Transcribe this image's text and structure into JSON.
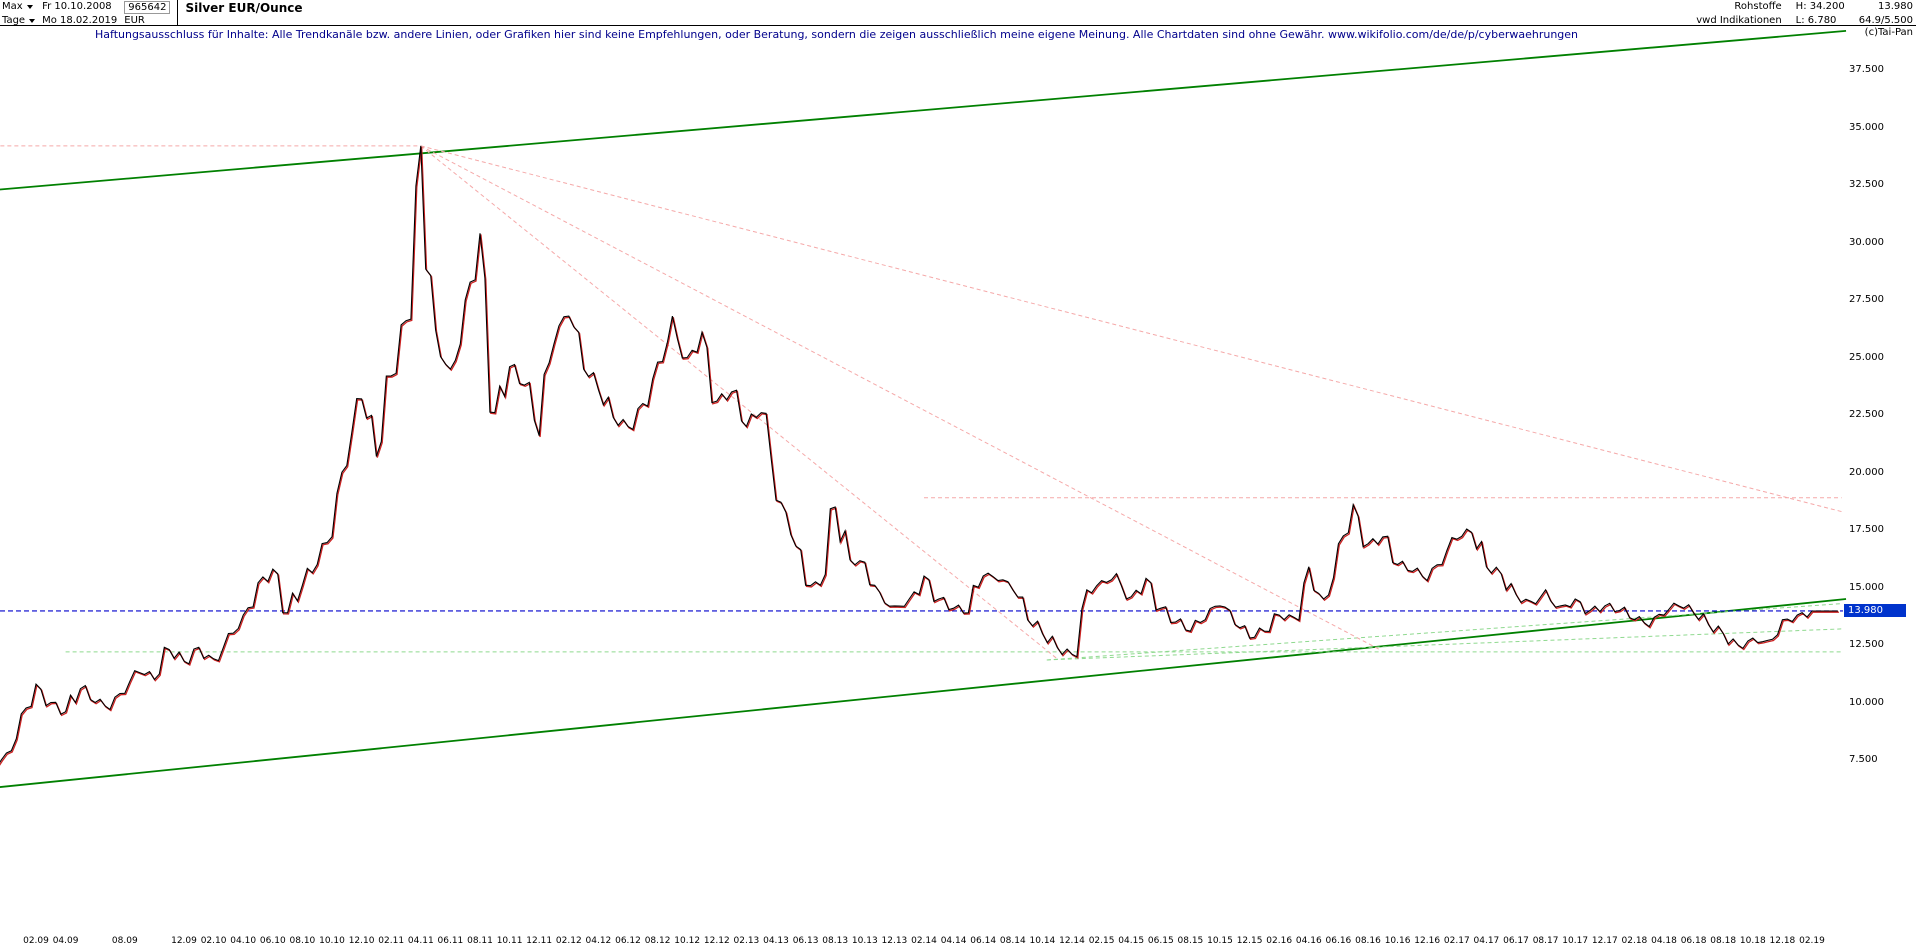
{
  "header": {
    "range_selector": "Max",
    "period_selector": "Tage",
    "date_from": "Fr 10.10.2008",
    "date_to": "Mo 18.02.2019",
    "security_id": "965642",
    "currency": "EUR",
    "title": "Silver EUR/Ounce",
    "category": "Rohstoffe",
    "source": "vwd Indikationen",
    "high_label": "H: 34.200",
    "low_label": "L: 6.780",
    "last_price": "13.980",
    "stat": "64.9/5.500",
    "copyright": "(c)Tai-Pan"
  },
  "disclaimer": "Haftungsausschluss für Inhalte: Alle Trendkanäle bzw. andere Linien, oder Grafiken hier sind keine Empfehlungen, oder Beratung, sondern die zeigen ausschließlich meine eigene Meinung. Alle Chartdaten sind ohne Gewähr.  www.wikifolio.com/de/de/p/cyberwaehrungen",
  "chart_data": {
    "type": "line",
    "title": "Silver EUR/Ounce",
    "xlabel": "",
    "ylabel": "EUR",
    "ylim": [
      6,
      40
    ],
    "grid": false,
    "legend": false,
    "current_price": 13.98,
    "price_label": "13.980",
    "high": 34.2,
    "low": 6.78,
    "y_ticks": [
      "37.500",
      "35.000",
      "32.500",
      "30.000",
      "27.500",
      "25.000",
      "22.500",
      "20.000",
      "17.500",
      "15.000",
      "12.500",
      "10.000",
      "7.500"
    ],
    "x_tick_labels": [
      "02.09",
      "04.09",
      "08.09",
      "12.09",
      "02.10",
      "04.10",
      "06.10",
      "08.10",
      "10.10",
      "12.10",
      "02.11",
      "04.11",
      "06.11",
      "08.11",
      "10.11",
      "12.11",
      "02.12",
      "04.12",
      "06.12",
      "08.12",
      "10.12",
      "12.12",
      "02.13",
      "04.13",
      "06.13",
      "08.13",
      "10.13",
      "12.13",
      "02.14",
      "04.14",
      "06.14",
      "08.14",
      "10.14",
      "12.14",
      "02.15",
      "04.15",
      "06.15",
      "08.15",
      "10.15",
      "12.15",
      "02.16",
      "04.16",
      "06.16",
      "08.16",
      "10.16",
      "12.16",
      "02.17",
      "04.17",
      "06.17",
      "08.17",
      "10.17",
      "12.17",
      "02.18",
      "04.18",
      "06.18",
      "08.18",
      "10.18",
      "12.18",
      "02.19"
    ],
    "series": [
      {
        "name": "Silver EUR/Ounce (approx monthly, 10.2008 - 02.2019)",
        "start_month": "10.2008",
        "granularity": "monthly-approx",
        "values": [
          8.3,
          7.3,
          7.8,
          9.5,
          10.8,
          10.0,
          9.6,
          10.6,
          10.0,
          9.7,
          10.4,
          11.3,
          11.0,
          12.3,
          11.8,
          12.4,
          11.9,
          13.0,
          13.8,
          15.2,
          15.8,
          13.9,
          15.1,
          16.0,
          17.2,
          20.3,
          23.2,
          20.7,
          24.2,
          26.6,
          34.2,
          26.2,
          24.5,
          27.5,
          30.4,
          22.6,
          24.6,
          23.8,
          21.6,
          25.6,
          26.8,
          24.5,
          23.6,
          22.4,
          22.0,
          23.0,
          24.8,
          26.8,
          25.0,
          26.1,
          23.1,
          23.5,
          22.0,
          22.6,
          18.8,
          17.3,
          15.1,
          15.1,
          18.5,
          16.2,
          16.1,
          14.8,
          14.2,
          14.5,
          15.5,
          14.5,
          14.1,
          13.9,
          15.5,
          15.3,
          14.9,
          13.6,
          13.0,
          12.4,
          12.1,
          14.9,
          15.3,
          15.6,
          14.6,
          15.4,
          14.1,
          13.5,
          13.1,
          13.6,
          14.2,
          13.4,
          12.8,
          13.1,
          13.8,
          13.7,
          15.9,
          14.5,
          16.9,
          18.6,
          16.9,
          17.2,
          16.0,
          15.7,
          15.3,
          16.0,
          17.1,
          17.4,
          15.9,
          15.6,
          14.7,
          14.4,
          14.9,
          14.2,
          14.5,
          14.0,
          14.2,
          14.0,
          13.6,
          13.3,
          13.8,
          14.2,
          13.9,
          13.4,
          13.0,
          12.5,
          12.8,
          12.7,
          13.6,
          13.8,
          13.98
        ]
      }
    ],
    "trend_lines": [
      {
        "name": "upper-channel-line",
        "color": "#008000",
        "width": 1.8,
        "dash": "",
        "m1": -4.3,
        "v1": 32.2,
        "m2": 122.3,
        "v2": 39.2
      },
      {
        "name": "lower-channel-line",
        "color": "#008000",
        "width": 1.8,
        "dash": "",
        "m1": -4.3,
        "v1": 6.2,
        "m2": 122.3,
        "v2": 14.5
      },
      {
        "name": "support-horizontal",
        "color": "#8fd98f",
        "width": 1,
        "dash": "4 3",
        "m1": 2,
        "v1": 12.2,
        "m2": 122,
        "v2": 12.2
      },
      {
        "name": "support-fan-upper",
        "color": "#8fd98f",
        "width": 1,
        "dash": "4 3",
        "m1": 68.3,
        "v1": 11.85,
        "m2": 122,
        "v2": 14.3
      },
      {
        "name": "support-fan-lower",
        "color": "#8fd98f",
        "width": 1,
        "dash": "4 3",
        "m1": 68.3,
        "v1": 11.85,
        "m2": 122,
        "v2": 13.2
      },
      {
        "name": "peak-resistance-horizontal",
        "color": "#f5a9a9",
        "width": 1,
        "dash": "4 3",
        "m1": -4.3,
        "v1": 34.2,
        "m2": 26,
        "v2": 34.2
      },
      {
        "name": "downtrend-fan-1",
        "color": "#f5a9a9",
        "width": 1,
        "dash": "4 3",
        "m1": 26,
        "v1": 34.2,
        "m2": 122,
        "v2": 18.3
      },
      {
        "name": "downtrend-fan-2",
        "color": "#f5a9a9",
        "width": 1,
        "dash": "4 3",
        "m1": 26,
        "v1": 34.2,
        "m2": 90.8,
        "v2": 12.3
      },
      {
        "name": "downtrend-fan-3",
        "color": "#f5a9a9",
        "width": 1,
        "dash": "4 3",
        "m1": 26,
        "v1": 34.2,
        "m2": 69,
        "v2": 11.9
      },
      {
        "name": "resistance-horizontal-right",
        "color": "#f5a9a9",
        "width": 1,
        "dash": "4 3",
        "m1": 60,
        "v1": 18.9,
        "m2": 122,
        "v2": 18.9
      }
    ],
    "colors": {
      "up": "#000000",
      "down": "#cc2222",
      "channel": "#008000",
      "minor_support": "#8fd98f",
      "resistance": "#f5a9a9",
      "price_line": "#0000cc",
      "price_label_bg": "#0033cc",
      "disclaimer_text": "#00008b"
    }
  }
}
